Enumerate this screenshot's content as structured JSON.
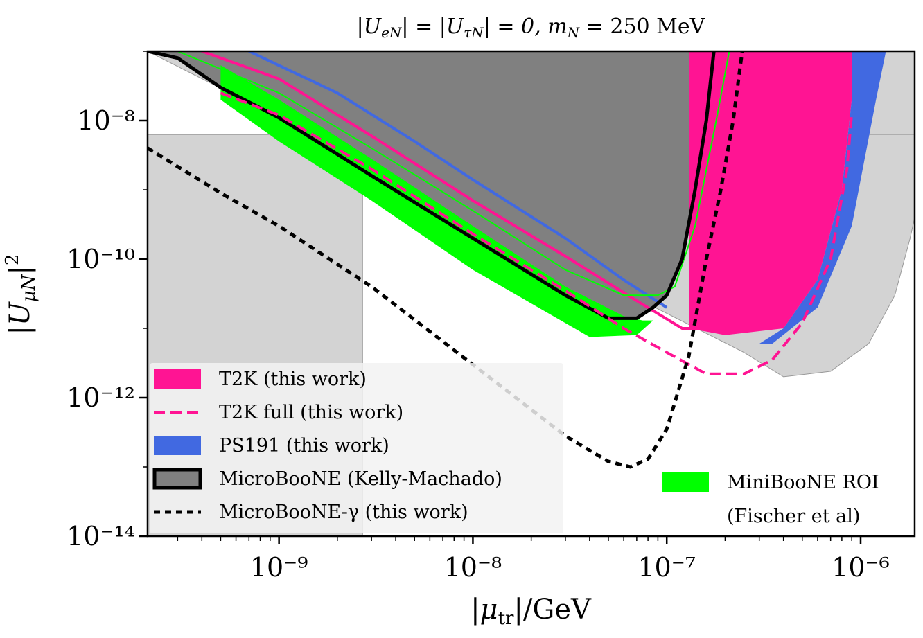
{
  "chart_data": {
    "type": "area",
    "title": "|U_eN| = |U_τN| = 0,  m_N = 250 MeV",
    "xlabel": "|μ_tr|/GeV",
    "ylabel": "|U_μN|²",
    "x_scale": "log",
    "y_scale": "log",
    "xlim": [
      2.1e-10,
      1.9e-06
    ],
    "ylim": [
      1e-14,
      1e-07
    ],
    "x_ticks": [
      {
        "value": 1e-09,
        "label": "10⁻⁹"
      },
      {
        "value": 1e-08,
        "label": "10⁻⁸"
      },
      {
        "value": 1e-07,
        "label": "10⁻⁷"
      },
      {
        "value": 1e-06,
        "label": "10⁻⁶"
      }
    ],
    "y_ticks": [
      {
        "value": 1e-14,
        "label": "10⁻¹⁴"
      },
      {
        "value": 1e-12,
        "label": "10⁻¹²"
      },
      {
        "value": 1e-10,
        "label": "10⁻¹⁰"
      },
      {
        "value": 1e-08,
        "label": "10⁻⁸"
      }
    ],
    "grid": false,
    "colors": {
      "t2k": "#ff1493",
      "ps191": "#4169e1",
      "microboone": "#808080",
      "miniboone": "#00ff00",
      "existing_limits": "#d3d3d3"
    },
    "existing_limits": {
      "name": "",
      "boundary": [
        [
          2.1e-10,
          6.3e-09
        ],
        [
          2.7e-09,
          6.3e-09
        ],
        [
          2.7e-09,
          6.3e-10
        ],
        [
          5e-10,
          6.3e-10
        ],
        [
          1e-09,
          6.3e-10
        ],
        [
          2.7e-09,
          1e-10
        ]
      ],
      "upper_region": [
        [
          2.1e-10,
          1e-07
        ],
        [
          1.9e-06,
          1e-07
        ],
        [
          1.9e-06,
          4e-10
        ],
        [
          1.8e-06,
          2e-10
        ],
        [
          1.5e-06,
          3e-11
        ],
        [
          1.1e-06,
          6e-12
        ],
        [
          7e-07,
          2.4e-12
        ],
        [
          4e-07,
          2e-12
        ],
        [
          2.5e-07,
          4.5e-12
        ]
      ],
      "lower_box": [
        [
          2.1e-10,
          6.3e-09
        ],
        [
          2.7e-09,
          6.3e-09
        ],
        [
          2.7e-09,
          1e-14
        ],
        [
          2.1e-10,
          1e-14
        ]
      ]
    },
    "series": [
      {
        "name": "T2K (this work)",
        "style": "band",
        "upper": [
          [
            4e-10,
            1e-07
          ],
          [
            1e-09,
            4e-08
          ],
          [
            3e-09,
            6e-09
          ],
          [
            1e-08,
            7e-10
          ],
          [
            3e-08,
            1.1e-10
          ],
          [
            7e-08,
            2.5e-11
          ],
          [
            1.2e-07,
            1e-11
          ],
          [
            2e-07,
            1e-11
          ]
        ],
        "lower": [
          [
            2e-07,
            1e-11
          ],
          [
            4e-07,
            1e-11
          ],
          [
            6e-07,
            5e-11
          ],
          [
            8e-07,
            1e-09
          ],
          [
            9e-07,
            2e-08
          ],
          [
            9.5e-07,
            1e-07
          ]
        ]
      },
      {
        "name": "T2K full (this work)",
        "style": "dashed",
        "points": [
          [
            5e-10,
            2.5e-08
          ],
          [
            1e-09,
            1.2e-08
          ],
          [
            3e-09,
            2e-09
          ],
          [
            1e-08,
            2.3e-10
          ],
          [
            3e-08,
            3.5e-11
          ],
          [
            6e-08,
            1e-11
          ],
          [
            1e-07,
            4.5e-12
          ],
          [
            1.6e-07,
            2.2e-12
          ],
          [
            2.5e-07,
            2.2e-12
          ],
          [
            3.5e-07,
            3.5e-12
          ],
          [
            5e-07,
            1.2e-11
          ],
          [
            7e-07,
            1e-10
          ],
          [
            8.5e-07,
            2e-09
          ],
          [
            9e-07,
            1.3e-08
          ]
        ]
      },
      {
        "name": "PS191 (this work)",
        "style": "band",
        "upper": [
          [
            7e-10,
            1e-07
          ],
          [
            2e-09,
            2.5e-08
          ],
          [
            5e-09,
            5e-09
          ],
          [
            1e-08,
            1.4e-09
          ],
          [
            3e-08,
            2e-10
          ],
          [
            6e-08,
            5e-11
          ],
          [
            1e-07,
            2e-11
          ]
        ],
        "lower": [
          [
            1e-07,
            2e-11
          ],
          [
            2e-07,
            6e-12
          ],
          [
            3.5e-07,
            6e-12
          ],
          [
            6e-07,
            2e-11
          ],
          [
            9e-07,
            3e-10
          ],
          [
            1.2e-06,
            2e-08
          ],
          [
            1.35e-06,
            1e-07
          ]
        ]
      },
      {
        "name": "MicroBooNE (Kelly-Machado)",
        "style": "filled-outline",
        "points": [
          [
            2.1e-10,
            1e-07
          ],
          [
            3e-10,
            8e-08
          ],
          [
            5e-10,
            3e-08
          ],
          [
            1e-09,
            1.1e-08
          ],
          [
            3e-09,
            1.6e-09
          ],
          [
            1e-08,
            2e-10
          ],
          [
            3e-08,
            3e-11
          ],
          [
            5e-08,
            1.4e-11
          ],
          [
            7e-08,
            1.4e-11
          ],
          [
            8.5e-08,
            2e-11
          ],
          [
            1e-07,
            3e-11
          ],
          [
            1.2e-07,
            1e-10
          ],
          [
            1.4e-07,
            1e-09
          ],
          [
            1.6e-07,
            1e-08
          ],
          [
            1.75e-07,
            1e-07
          ]
        ]
      },
      {
        "name": "MicroBooNE-γ (this work)",
        "style": "dotted",
        "points": [
          [
            2.1e-10,
            4e-09
          ],
          [
            5e-10,
            9e-10
          ],
          [
            1e-09,
            3e-10
          ],
          [
            3e-09,
            4e-11
          ],
          [
            1e-08,
            3e-12
          ],
          [
            3e-08,
            2.8e-13
          ],
          [
            5e-08,
            1.2e-13
          ],
          [
            6.5e-08,
            1e-13
          ],
          [
            8e-08,
            1.3e-13
          ],
          [
            1e-07,
            3.5e-13
          ],
          [
            1.3e-07,
            4e-12
          ],
          [
            1.6e-07,
            1e-10
          ],
          [
            1.9e-07,
            1e-09
          ],
          [
            2.2e-07,
            1e-08
          ],
          [
            2.45e-07,
            1e-07
          ]
        ]
      },
      {
        "name": "MiniBooNE ROI",
        "name_line2": "(Fischer et al)",
        "style": "band",
        "upper": [
          [
            5e-10,
            6.3e-08
          ],
          [
            1e-09,
            2e-08
          ],
          [
            3e-09,
            2.8e-09
          ],
          [
            1e-08,
            3e-10
          ],
          [
            3e-08,
            4e-11
          ],
          [
            6e-08,
            1.5e-11
          ],
          [
            7.5e-08,
            1.3e-11
          ],
          [
            8.5e-08,
            1.3e-11
          ]
        ],
        "lower": [
          [
            8.5e-08,
            1.3e-11
          ],
          [
            7e-08,
            8e-12
          ],
          [
            4e-08,
            7.5e-12
          ],
          [
            1e-08,
            7e-11
          ],
          [
            3e-09,
            7e-10
          ],
          [
            1e-09,
            5e-09
          ],
          [
            5e-10,
            2e-08
          ]
        ],
        "outline": [
          [
            3e-10,
            1e-07
          ],
          [
            1e-09,
            2.5e-08
          ],
          [
            3e-09,
            4e-09
          ],
          [
            1e-08,
            5e-10
          ],
          [
            3e-08,
            7e-11
          ],
          [
            6e-08,
            3e-11
          ],
          [
            9e-08,
            3e-11
          ],
          [
            1.1e-07,
            4e-11
          ],
          [
            1.4e-07,
            3e-10
          ],
          [
            1.8e-07,
            1e-08
          ],
          [
            2.1e-07,
            1e-07
          ]
        ]
      }
    ],
    "legend": {
      "placement": "lower-left",
      "entries": [
        {
          "label": "T2K (this work)",
          "kind": "patch"
        },
        {
          "label": "T2K full (this work)",
          "kind": "dashed"
        },
        {
          "label": "PS191 (this work)",
          "kind": "patch"
        },
        {
          "label": "MicroBooNE (Kelly-Machado)",
          "kind": "patch-outline"
        },
        {
          "label": "MicroBooNE-γ (this work)",
          "kind": "dotted"
        }
      ],
      "second": {
        "placement": "lower-right",
        "label": "MiniBooNE ROI",
        "label_line2": "(Fischer et al)"
      }
    }
  }
}
